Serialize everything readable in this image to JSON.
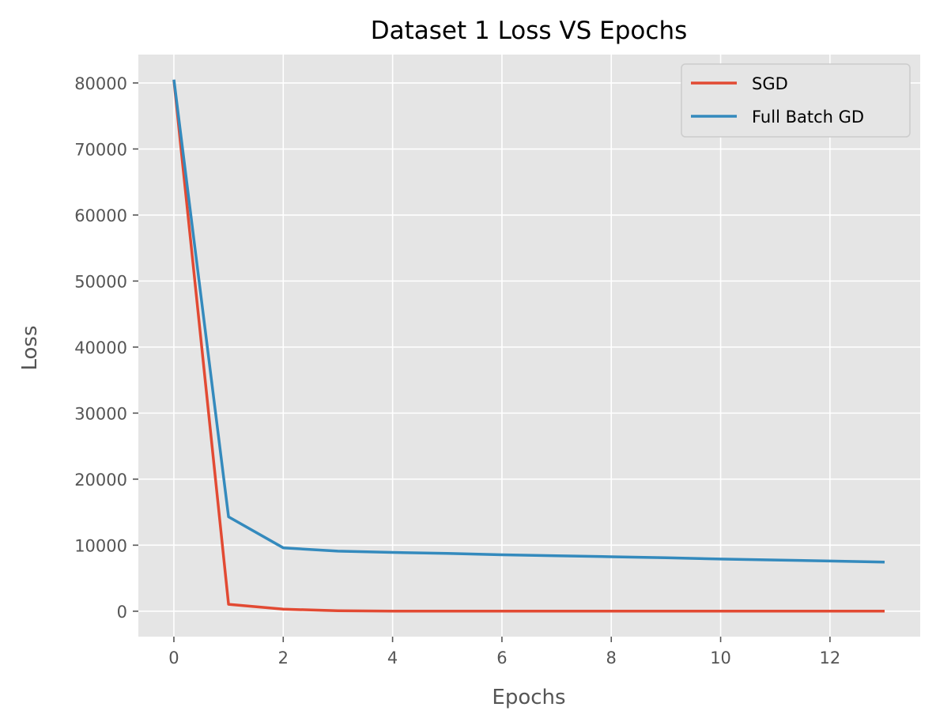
{
  "chart_data": {
    "type": "line",
    "title": "Dataset 1 Loss VS Epochs",
    "xlabel": "Epochs",
    "ylabel": "Loss",
    "xlim": [
      -0.65,
      13.65
    ],
    "ylim": [
      -3850,
      84300
    ],
    "x_ticks": [
      0,
      2,
      4,
      6,
      8,
      10,
      12
    ],
    "y_ticks": [
      0,
      10000,
      20000,
      30000,
      40000,
      50000,
      60000,
      70000,
      80000
    ],
    "grid": true,
    "legend_position": "top-right",
    "x": [
      0,
      1,
      2,
      3,
      4,
      5,
      6,
      7,
      8,
      9,
      10,
      11,
      12,
      13
    ],
    "series": [
      {
        "name": "SGD",
        "color": "#E24A33",
        "values": [
          80400,
          1050,
          300,
          80,
          20,
          10,
          5,
          5,
          5,
          3,
          3,
          3,
          2,
          2
        ]
      },
      {
        "name": "Full Batch GD",
        "color": "#348ABD",
        "values": [
          80500,
          14300,
          9600,
          9100,
          8900,
          8750,
          8550,
          8400,
          8250,
          8100,
          7900,
          7750,
          7600,
          7450
        ]
      }
    ],
    "background": "#E5E5E5",
    "grid_color": "#FFFFFF"
  }
}
